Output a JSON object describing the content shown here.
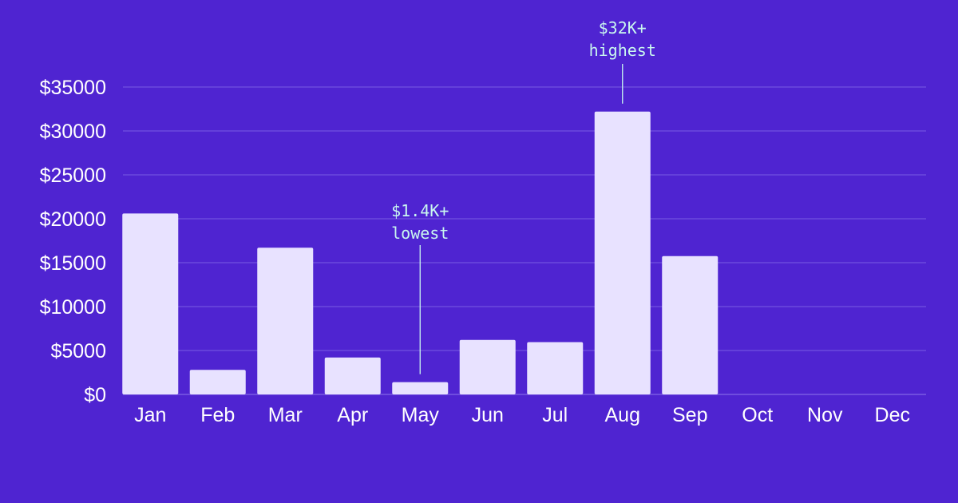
{
  "chart_data": {
    "type": "bar",
    "title": "",
    "xlabel": "",
    "ylabel": "",
    "categories": [
      "Jan",
      "Feb",
      "Mar",
      "Apr",
      "May",
      "Jun",
      "Jul",
      "Aug",
      "Sep",
      "Oct",
      "Nov",
      "Dec"
    ],
    "values": [
      20600,
      2800,
      16700,
      4200,
      1400,
      6200,
      5950,
      32200,
      15750,
      0,
      0,
      0
    ],
    "ylim": [
      0,
      35000
    ],
    "y_ticks": [
      {
        "value": 0,
        "label": "$0"
      },
      {
        "value": 5000,
        "label": "$5000"
      },
      {
        "value": 10000,
        "label": "$10000"
      },
      {
        "value": 15000,
        "label": "$15000"
      },
      {
        "value": 20000,
        "label": "$20000"
      },
      {
        "value": 25000,
        "label": "$25000"
      },
      {
        "value": 30000,
        "label": "$30000"
      },
      {
        "value": 35000,
        "label": "$35000"
      }
    ],
    "grid": true,
    "legend": "none",
    "annotations": [
      {
        "category": "Aug",
        "lines": [
          "$32K+",
          "highest"
        ]
      },
      {
        "category": "May",
        "lines": [
          "$1.4K+",
          "lowest"
        ]
      }
    ],
    "colors": {
      "background": "#4f24d1",
      "bar": "#e8e2ff",
      "gridline": "#7a5be3",
      "axis_text": "#ffffff",
      "annotation": "#c9f7ef"
    }
  }
}
